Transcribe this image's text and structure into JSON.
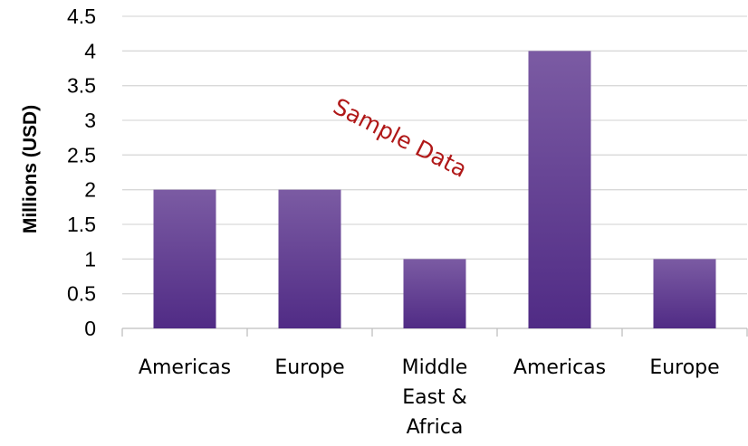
{
  "chart_data": {
    "type": "bar",
    "categories": [
      [
        "Americas"
      ],
      [
        "Europe"
      ],
      [
        "Middle",
        "East &",
        "Africa"
      ],
      [
        "Americas"
      ],
      [
        "Europe"
      ]
    ],
    "values": [
      2,
      2,
      1,
      4,
      1
    ],
    "title": "",
    "xlabel": "",
    "ylabel": "Millions (USD)",
    "ylim": [
      0,
      4.5
    ],
    "yticks": [
      "0",
      "0.5",
      "1",
      "1.5",
      "2",
      "2.5",
      "3",
      "3.5",
      "4",
      "4.5"
    ],
    "grid": true,
    "legend": "none",
    "annotation": "Sample Data",
    "colors": {
      "bar_top": "#7b5ba3",
      "bar_bottom": "#502b85",
      "grid": "#d9d9d9",
      "axis": "#bfbfbf",
      "annotation": "#b01818"
    }
  }
}
